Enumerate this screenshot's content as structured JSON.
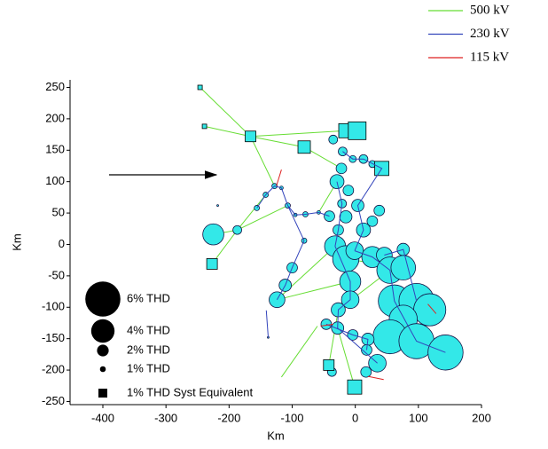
{
  "chart_data": {
    "type": "scatter",
    "xlabel": "Km",
    "ylabel": "Km",
    "xlim": [
      -452,
      200
    ],
    "ylim": [
      -255,
      262
    ],
    "xticks": [
      -400,
      -300,
      -200,
      -100,
      0,
      100,
      200
    ],
    "yticks": [
      -250,
      -200,
      -150,
      -100,
      -50,
      0,
      50,
      100,
      150,
      200,
      250
    ],
    "node_color": "#33e8e8",
    "series": [
      {
        "name": "500 kV",
        "color": "#66dd33",
        "x": [
          -246,
          -166,
          null,
          -239,
          -166,
          null,
          -166,
          -81,
          null,
          -166,
          -15,
          null,
          -166,
          -128,
          null,
          -225,
          -187,
          -142,
          null,
          -227,
          -187,
          null,
          -81,
          -22,
          null,
          -187,
          -107,
          null,
          -32,
          -124,
          null,
          -15,
          76,
          null,
          -124,
          -8,
          null,
          -27,
          55,
          null,
          -42,
          -27,
          null,
          -117,
          -60,
          null,
          -1,
          -28,
          null,
          -29,
          -58
        ],
        "y": [
          250,
          172,
          null,
          188,
          172,
          null,
          172,
          155,
          null,
          172,
          181,
          null,
          172,
          93,
          null,
          16,
          23,
          79,
          null,
          -31,
          23,
          null,
          155,
          121,
          null,
          23,
          62,
          null,
          -3,
          -88,
          null,
          -23,
          -37,
          null,
          -88,
          -59,
          null,
          -104,
          -41,
          null,
          -192,
          -104,
          null,
          -211,
          -130,
          null,
          -227,
          -133,
          null,
          100,
          51
        ]
      },
      {
        "name": "230 kV",
        "color": "#3344bb",
        "x": [
          -156,
          -142,
          -128,
          -117,
          -107,
          -95,
          -79,
          -58,
          -41,
          null,
          -81,
          -100,
          -111,
          -124,
          null,
          -1,
          27,
          55,
          62,
          97,
          143,
          null,
          -32,
          -8,
          -8,
          -27,
          -28,
          35,
          null,
          -20,
          -4,
          13,
          42,
          4,
          13,
          -1,
          null,
          -29,
          -21,
          -27,
          -32,
          null,
          -141,
          -138,
          null,
          46,
          76,
          97,
          null,
          -46,
          -4,
          20,
          18,
          null,
          -107,
          -81
        ],
        "y": [
          58,
          79,
          93,
          90,
          62,
          47,
          48,
          51,
          45,
          null,
          6,
          -37,
          -65,
          -88,
          null,
          -10,
          -20,
          -41,
          -90,
          -154,
          -172,
          null,
          -3,
          -59,
          -88,
          -104,
          -133,
          -189,
          null,
          148,
          136,
          136,
          121,
          62,
          23,
          -10,
          null,
          100,
          65,
          23,
          -3,
          null,
          -105,
          -148,
          null,
          -17,
          -8,
          -90,
          null,
          -127,
          -144,
          -151,
          -168,
          null,
          62,
          6
        ]
      },
      {
        "name": "115 kV",
        "color": "#dd2222",
        "x": [
          -117,
          -125,
          null,
          -55,
          -35,
          null,
          20,
          45,
          null,
          115,
          128
        ],
        "y": [
          119,
          93,
          null,
          -130,
          -127,
          null,
          -210,
          -215,
          null,
          -95,
          -110
        ]
      }
    ],
    "buses": {
      "x": [
        -225,
        -187,
        -218,
        -156,
        -142,
        -128,
        -117,
        -107,
        -95,
        -79,
        -58,
        -41,
        -20,
        -35,
        -22,
        -29,
        -11,
        -21,
        -15,
        -27,
        13,
        27,
        4,
        38,
        -81,
        -100,
        -111,
        -124,
        -32,
        -15,
        -1,
        27,
        46,
        76,
        -8,
        -8,
        55,
        76,
        62,
        97,
        118,
        76,
        55,
        97,
        143,
        35,
        20,
        -4,
        -27,
        -28,
        -46,
        -37,
        17,
        18,
        13,
        27,
        -4,
        -138
      ],
      "y": [
        16,
        23,
        62,
        58,
        79,
        93,
        90,
        62,
        47,
        48,
        51,
        45,
        148,
        167,
        121,
        100,
        86,
        65,
        44,
        23,
        23,
        37,
        62,
        54,
        6,
        -37,
        -65,
        -88,
        -3,
        -23,
        -10,
        -20,
        -17,
        -8,
        -59,
        -88,
        -41,
        -37,
        -90,
        -90,
        -104,
        -119,
        -147,
        -154,
        -172,
        -189,
        -151,
        -144,
        -104,
        -133,
        -127,
        -203,
        -203,
        -168,
        136,
        128,
        136,
        -148
      ],
      "thd": [
        3.6,
        1.5,
        0.3,
        0.9,
        0.9,
        0.9,
        0.6,
        0.9,
        0.6,
        0.9,
        0.6,
        1.8,
        1.5,
        1.5,
        1.8,
        2.4,
        1.8,
        1.5,
        2.1,
        1.8,
        2.4,
        1.8,
        2.1,
        1.8,
        0.9,
        1.8,
        2.1,
        2.7,
        3.6,
        4.5,
        3.0,
        3.6,
        2.7,
        2.1,
        3.6,
        3.0,
        4.5,
        4.2,
        5.5,
        6.0,
        5.5,
        4.8,
        5.8,
        6.0,
        6.0,
        3.0,
        2.1,
        1.8,
        2.4,
        2.1,
        1.8,
        1.5,
        1.8,
        1.8,
        1.5,
        1.2,
        1.2,
        0.3
      ]
    },
    "equivalents": {
      "x": [
        -246,
        -239,
        -166,
        -81,
        -15,
        3,
        42,
        -227,
        -1,
        -42
      ],
      "y": [
        250,
        188,
        172,
        155,
        181,
        181,
        121,
        -31,
        -227,
        -192
      ],
      "thd": [
        0.5,
        0.5,
        1.2,
        1.4,
        1.6,
        2.0,
        1.6,
        1.2,
        1.6,
        1.2
      ]
    },
    "size_legend": [
      {
        "label": "6% THD",
        "value": 6
      },
      {
        "label": "4% THD",
        "value": 4
      },
      {
        "label": "2% THD",
        "value": 2
      },
      {
        "label": "1% THD",
        "value": 1
      },
      {
        "label": "1% THD Syst Equivalent",
        "value": 1,
        "marker": "square"
      }
    ]
  }
}
